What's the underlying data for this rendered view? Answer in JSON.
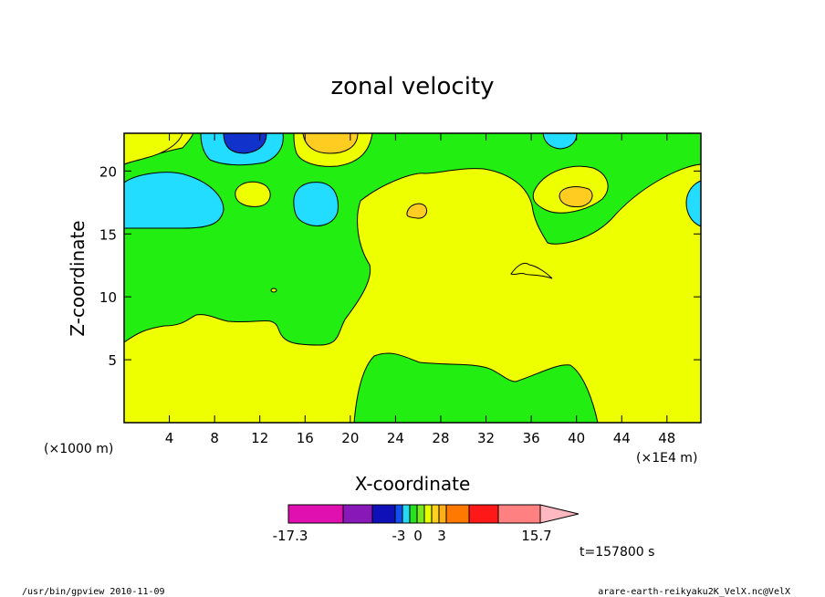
{
  "chart_data": {
    "type": "contour",
    "title": "zonal velocity",
    "xlabel": "X-coordinate",
    "ylabel": "Z-coordinate",
    "x_unit_left": "(×1000 m)",
    "x_unit_right": "(×1E4 m)",
    "xlim": [
      0,
      51
    ],
    "ylim": [
      0,
      23
    ],
    "x_ticks": [
      "4",
      "8",
      "12",
      "16",
      "20",
      "24",
      "28",
      "32",
      "36",
      "40",
      "44",
      "48"
    ],
    "x_tick_values": [
      4,
      8,
      12,
      16,
      20,
      24,
      28,
      32,
      36,
      40,
      44,
      48
    ],
    "y_ticks": [
      "5",
      "10",
      "15",
      "20"
    ],
    "y_tick_values": [
      5,
      10,
      15,
      20
    ],
    "colorbar": {
      "labels": [
        "-17.3",
        "-3",
        "0",
        "3",
        "15.7"
      ],
      "label_values": [
        -17.3,
        -3,
        0,
        3,
        15.7
      ],
      "colors": [
        "#e010b0",
        "#8818b8",
        "#1010b8",
        "#1050f0",
        "#28d8f0",
        "#28e020",
        "#78e820",
        "#e8ff00",
        "#ffd020",
        "#ffb018",
        "#ff7800",
        "#ff1818",
        "#ff8080",
        "#ffb8c0"
      ]
    },
    "time_label": "t=157800 s",
    "field_colors": {
      "green": "#22ee11",
      "yellow": "#eeff00",
      "cyan": "#22ddff",
      "blue": "#1133cc",
      "orange": "#ffcc22"
    }
  },
  "footer": {
    "left": "/usr/bin/gpview  2010-11-09",
    "right": "arare-earth-reikyaku2K_VelX.nc@VelX"
  }
}
